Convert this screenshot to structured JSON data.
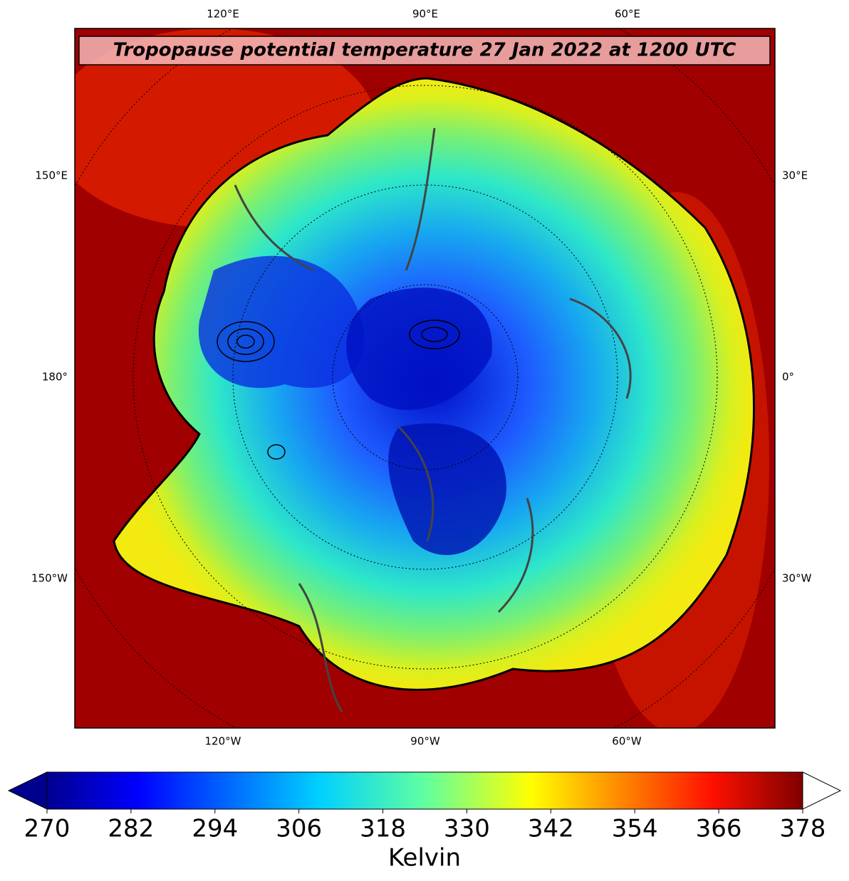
{
  "title": "Tropopause potential temperature 27 Jan 2022 at 1200 UTC",
  "longitude_labels": {
    "top": [
      "120°E",
      "90°E",
      "60°E"
    ],
    "bottom": [
      "120°W",
      "90°W",
      "60°W"
    ],
    "left": [
      "150°E",
      "180°",
      "150°W"
    ],
    "right": [
      "30°E",
      "0°",
      "30°W"
    ]
  },
  "colorbar": {
    "label": "Kelvin",
    "lim": [
      270,
      378
    ],
    "ticks": [
      270,
      282,
      294,
      306,
      318,
      330,
      342,
      354,
      366,
      378
    ]
  }
}
